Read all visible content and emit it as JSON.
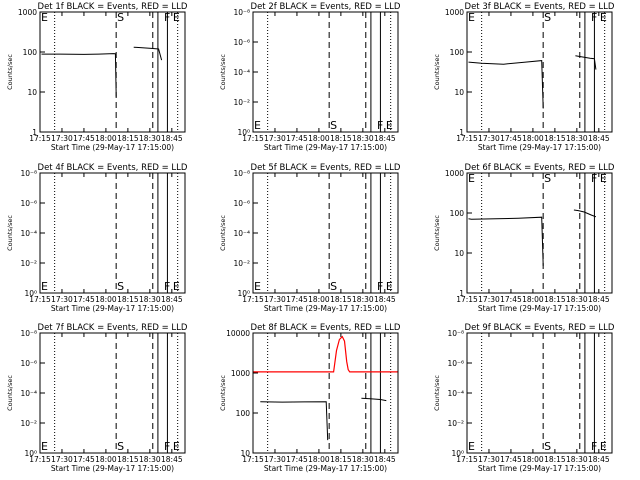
{
  "chart_data": {
    "type": "line",
    "layout": "3x3 grid of small multiples",
    "series_colors": {
      "Events": "#000000",
      "LLD": "#ff0000"
    },
    "x_ticks": [
      "17:15",
      "17:30",
      "17:45",
      "18:00",
      "18:15",
      "18:30",
      "18:45"
    ],
    "x_tick_minutes": [
      0,
      15,
      30,
      45,
      60,
      75,
      90
    ],
    "x_range_minutes": [
      0,
      99
    ],
    "xlabel": "Start Time (29-May-17 17:15:00)",
    "ylabel": "Counts/sec",
    "y_scale": "log",
    "events": {
      "E_start_minutes": 0,
      "S_minutes": 52,
      "F_minutes": 84,
      "E_end_minutes": 90,
      "dotted_minutes": [
        10,
        94
      ],
      "dashed_minutes": [
        52,
        77
      ],
      "solid_minutes": [
        80.5,
        87
      ]
    },
    "panels": [
      {
        "title": "Det 1f BLACK = Events, RED = LLD",
        "y_ticks": [
          "1",
          "10",
          "100",
          "1000"
        ],
        "ylim": [
          1,
          1200
        ],
        "segments": [
          [
            [
              1,
              100
            ],
            [
              14,
              100
            ],
            [
              30,
              98
            ],
            [
              40,
              100
            ],
            [
              50,
              103
            ],
            [
              51.5,
              102
            ],
            [
              52,
              8
            ]
          ],
          [
            [
              64,
              150
            ],
            [
              66,
              148
            ],
            [
              76,
              140
            ],
            [
              81,
              135
            ],
            [
              83,
              70
            ]
          ]
        ],
        "markers": [
          {
            "label": "E",
            "minutes": 0
          },
          {
            "label": "S",
            "minutes": 52
          },
          {
            "label": "F",
            "minutes": 84
          },
          {
            "label": "E",
            "minutes": 90
          }
        ],
        "marker_row": "top"
      },
      {
        "title": "Det 2f BLACK = Events, RED = LLD",
        "y_ticks": [
          "10⁰",
          "10⁻²",
          "10⁻⁴",
          "10⁻⁶",
          "10⁻⁸"
        ],
        "ylim": [
          1e-09,
          1
        ],
        "segments": [],
        "markers": [
          {
            "label": "E",
            "minutes": 0
          },
          {
            "label": "S",
            "minutes": 52
          },
          {
            "label": "F",
            "minutes": 84
          },
          {
            "label": "E",
            "minutes": 90
          }
        ],
        "marker_row": "bottom"
      },
      {
        "title": "Det 3f BLACK = Events, RED = LLD",
        "y_ticks": [
          "1",
          "10",
          "100",
          "1000"
        ],
        "ylim": [
          1,
          1200
        ],
        "segments": [
          [
            [
              1,
              62
            ],
            [
              10,
              58
            ],
            [
              25,
              55
            ],
            [
              40,
              62
            ],
            [
              51,
              68
            ],
            [
              52,
              4
            ]
          ],
          [
            [
              74,
              90
            ],
            [
              76,
              88
            ],
            [
              84,
              78
            ],
            [
              87,
              76
            ],
            [
              88,
              40
            ]
          ]
        ],
        "markers": [
          {
            "label": "E",
            "minutes": 0
          },
          {
            "label": "S",
            "minutes": 52
          },
          {
            "label": "F",
            "minutes": 84
          },
          {
            "label": "E",
            "minutes": 90
          }
        ],
        "marker_row": "top"
      },
      {
        "title": "Det 4f BLACK = Events, RED = LLD",
        "y_ticks": [
          "10⁰",
          "10⁻²",
          "10⁻⁴",
          "10⁻⁶",
          "10⁻⁸"
        ],
        "ylim": [
          1e-09,
          1
        ],
        "segments": [],
        "markers": [
          {
            "label": "E",
            "minutes": 0
          },
          {
            "label": "S",
            "minutes": 52
          },
          {
            "label": "F",
            "minutes": 84
          },
          {
            "label": "E",
            "minutes": 90
          }
        ],
        "marker_row": "bottom"
      },
      {
        "title": "Det 5f BLACK = Events, RED = LLD",
        "y_ticks": [
          "10⁰",
          "10⁻²",
          "10⁻⁴",
          "10⁻⁶",
          "10⁻⁸"
        ],
        "ylim": [
          1e-09,
          1
        ],
        "segments": [],
        "markers": [
          {
            "label": "E",
            "minutes": 0
          },
          {
            "label": "S",
            "minutes": 52
          },
          {
            "label": "F",
            "minutes": 84
          },
          {
            "label": "E",
            "minutes": 90
          }
        ],
        "marker_row": "bottom"
      },
      {
        "title": "Det 6f BLACK = Events, RED = LLD",
        "y_ticks": [
          "1",
          "10",
          "100",
          "1000"
        ],
        "ylim": [
          1,
          1200
        ],
        "segments": [
          [
            [
              1,
              80
            ],
            [
              3,
              78
            ],
            [
              20,
              80
            ],
            [
              35,
              83
            ],
            [
              51,
              88
            ],
            [
              52,
              5
            ]
          ],
          [
            [
              73,
              135
            ],
            [
              76,
              130
            ],
            [
              80,
              120
            ],
            [
              85,
              100
            ],
            [
              88,
              90
            ]
          ]
        ],
        "markers": [
          {
            "label": "E",
            "minutes": 0
          },
          {
            "label": "S",
            "minutes": 52
          },
          {
            "label": "F",
            "minutes": 84
          },
          {
            "label": "E",
            "minutes": 90
          }
        ],
        "marker_row": "top"
      },
      {
        "title": "Det 7f BLACK = Events, RED = LLD",
        "y_ticks": [
          "10⁰",
          "10⁻²",
          "10⁻⁴",
          "10⁻⁶",
          "10⁻⁸"
        ],
        "ylim": [
          1e-09,
          1
        ],
        "segments": [],
        "markers": [
          {
            "label": "E",
            "minutes": 0
          },
          {
            "label": "S",
            "minutes": 52
          },
          {
            "label": "F",
            "minutes": 84
          },
          {
            "label": "E",
            "minutes": 90
          }
        ],
        "marker_row": "bottom"
      },
      {
        "title": "Det 8f BLACK = Events, RED = LLD",
        "y_ticks": [
          "10",
          "100",
          "1000",
          "10000"
        ],
        "ylim": [
          8,
          15000
        ],
        "segments": [
          [
            [
              5,
              200
            ],
            [
              20,
              195
            ],
            [
              35,
              198
            ],
            [
              50,
              200
            ],
            [
              51,
              18
            ]
          ],
          [
            [
              74,
              250
            ],
            [
              80,
              240
            ],
            [
              87,
              230
            ],
            [
              91,
              215
            ]
          ]
        ],
        "red_series": [
          [
            0,
            1300
          ],
          [
            50,
            1300
          ],
          [
            55,
            1300
          ],
          [
            57,
            5000
          ],
          [
            59,
            10000
          ],
          [
            61,
            12000
          ],
          [
            62.5,
            9000
          ],
          [
            64,
            2500
          ],
          [
            65,
            1500
          ],
          [
            66,
            1300
          ],
          [
            99,
            1300
          ]
        ],
        "markers": [],
        "marker_row": "none"
      },
      {
        "title": "Det 9f BLACK = Events, RED = LLD",
        "y_ticks": [
          "10⁰",
          "10⁻²",
          "10⁻⁴",
          "10⁻⁶",
          "10⁻⁸"
        ],
        "ylim": [
          1e-09,
          1
        ],
        "segments": [],
        "markers": [
          {
            "label": "E",
            "minutes": 0
          },
          {
            "label": "S",
            "minutes": 52
          },
          {
            "label": "F",
            "minutes": 84
          },
          {
            "label": "E",
            "minutes": 90
          }
        ],
        "marker_row": "bottom"
      }
    ]
  }
}
